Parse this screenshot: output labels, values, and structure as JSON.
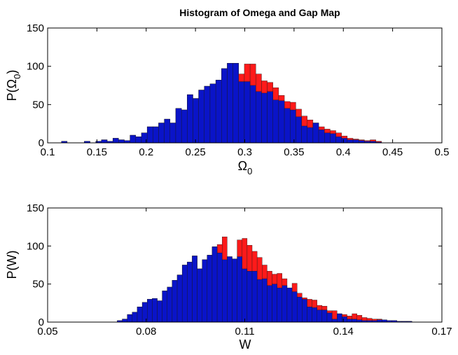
{
  "figure_title": "Histogram of Omega and Gap Map",
  "colors": {
    "overlay": "#ff1a1a",
    "base": "#0a14c8",
    "axes": "#000000",
    "background": "#ffffff"
  },
  "chart_data": [
    {
      "type": "bar",
      "title": "Histogram of Omega and Gap Map",
      "xlabel": "Ω",
      "xlabel_sub": "0",
      "ylabel": "P(Ω",
      "ylabel_sub": "0",
      "ylabel_close": ")",
      "xlim": [
        0.1,
        0.5
      ],
      "ylim": [
        0,
        150
      ],
      "xticks": [
        0.1,
        0.15,
        0.2,
        0.25,
        0.3,
        0.35,
        0.4,
        0.45,
        0.5
      ],
      "xtick_labels": [
        "0.1",
        "0.15",
        "0.2",
        "0.25",
        "0.3",
        "0.35",
        "0.4",
        "0.45",
        "0.5"
      ],
      "yticks": [
        0,
        50,
        100,
        150
      ],
      "ytick_labels": [
        "0",
        "50",
        "100",
        "150"
      ],
      "bin_start": 0.114,
      "bin_width": 0.0058,
      "series": [
        {
          "name": "Gap Map",
          "color": "#ff1a1a",
          "values": [
            2,
            0,
            0,
            0,
            2,
            0,
            2,
            4,
            2,
            6,
            4,
            3,
            10,
            8,
            13,
            21,
            21,
            26,
            31,
            26,
            45,
            43,
            63,
            58,
            69,
            74,
            77,
            82,
            97,
            104,
            104,
            90,
            103,
            103,
            90,
            81,
            79,
            72,
            62,
            54,
            53,
            44,
            35,
            30,
            26,
            21,
            18,
            16,
            13,
            9,
            6,
            5,
            4,
            3,
            4,
            2,
            0,
            0,
            0,
            0
          ]
        },
        {
          "name": "Omega",
          "color": "#0a14c8",
          "values": [
            2,
            0,
            0,
            0,
            2,
            0,
            2,
            4,
            2,
            6,
            4,
            3,
            10,
            8,
            13,
            21,
            21,
            26,
            31,
            26,
            45,
            43,
            63,
            58,
            69,
            74,
            77,
            82,
            97,
            104,
            104,
            80,
            80,
            75,
            67,
            65,
            67,
            56,
            55,
            45,
            43,
            34,
            22,
            20,
            26,
            17,
            13,
            12,
            8,
            6,
            4,
            4,
            3,
            2,
            2,
            1,
            0,
            0,
            0,
            0
          ]
        }
      ]
    },
    {
      "type": "bar",
      "title": "",
      "xlabel": "W",
      "ylabel": "P(W)",
      "xlim": [
        0.05,
        0.17
      ],
      "ylim": [
        0,
        150
      ],
      "xticks": [
        0.05,
        0.08,
        0.11,
        0.14,
        0.17
      ],
      "xtick_labels": [
        "0.05",
        "0.08",
        "0.11",
        "0.14",
        "0.17"
      ],
      "yticks": [
        0,
        50,
        100,
        150
      ],
      "ytick_labels": [
        "0",
        "50",
        "100",
        "150"
      ],
      "bin_start": 0.0712,
      "bin_width": 0.00152,
      "series": [
        {
          "name": "Gap Map",
          "color": "#ff1a1a",
          "values": [
            2,
            4,
            10,
            13,
            20,
            26,
            30,
            31,
            28,
            41,
            46,
            55,
            62,
            75,
            79,
            87,
            70,
            82,
            88,
            99,
            102,
            112,
            86,
            83,
            108,
            110,
            101,
            93,
            85,
            75,
            67,
            63,
            64,
            57,
            43,
            51,
            38,
            32,
            30,
            29,
            22,
            21,
            15,
            15,
            11,
            10,
            8,
            11,
            9,
            6,
            5,
            4,
            4,
            2,
            2,
            2,
            1,
            1,
            1,
            0
          ]
        },
        {
          "name": "W",
          "color": "#0a14c8",
          "values": [
            2,
            4,
            10,
            13,
            20,
            26,
            30,
            31,
            28,
            41,
            46,
            55,
            62,
            75,
            79,
            87,
            70,
            82,
            88,
            99,
            91,
            82,
            86,
            83,
            86,
            70,
            67,
            67,
            56,
            57,
            48,
            50,
            45,
            48,
            45,
            40,
            33,
            30,
            20,
            19,
            16,
            16,
            12,
            4,
            11,
            7,
            4,
            4,
            3,
            2,
            2,
            2,
            3,
            3,
            2,
            2,
            1,
            1,
            1,
            0
          ]
        }
      ]
    }
  ]
}
